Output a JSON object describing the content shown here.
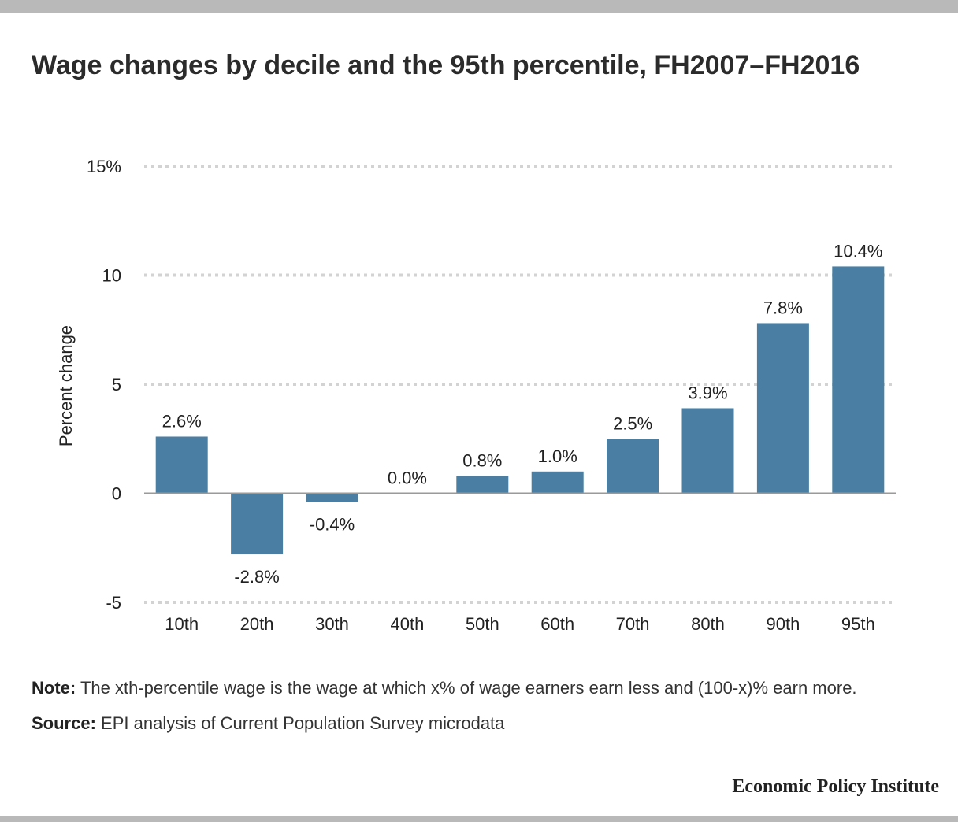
{
  "title": "Wage changes by decile and the 95th percentile, FH2007–FH2016",
  "note": {
    "label": "Note:",
    "text": "The xth-percentile wage is the wage at which x% of wage earners earn less and (100-x)% earn more."
  },
  "source": {
    "label": "Source:",
    "text": "EPI analysis of Current Population Survey microdata"
  },
  "brand": "Economic Policy Institute",
  "chart_data": {
    "type": "bar",
    "title": "Wage changes by decile and the 95th percentile, FH2007–FH2016",
    "xlabel": "",
    "ylabel": "Percent change",
    "categories": [
      "10th",
      "20th",
      "30th",
      "40th",
      "50th",
      "60th",
      "70th",
      "80th",
      "90th",
      "95th"
    ],
    "values": [
      2.6,
      -2.8,
      -0.4,
      0.0,
      0.8,
      1.0,
      2.5,
      3.9,
      7.8,
      10.4
    ],
    "data_labels": [
      "2.6%",
      "-2.8%",
      "-0.4%",
      "0.0%",
      "0.8%",
      "1.0%",
      "2.5%",
      "3.9%",
      "7.8%",
      "10.4%"
    ],
    "ylim": [
      -5,
      15
    ],
    "yticks": [
      -5,
      0,
      5,
      10,
      15
    ],
    "ytick_labels": [
      "-5",
      "0",
      "5",
      "10",
      "15%"
    ],
    "grid": true,
    "legend": "none",
    "bar_color": "#4a7fa3"
  }
}
